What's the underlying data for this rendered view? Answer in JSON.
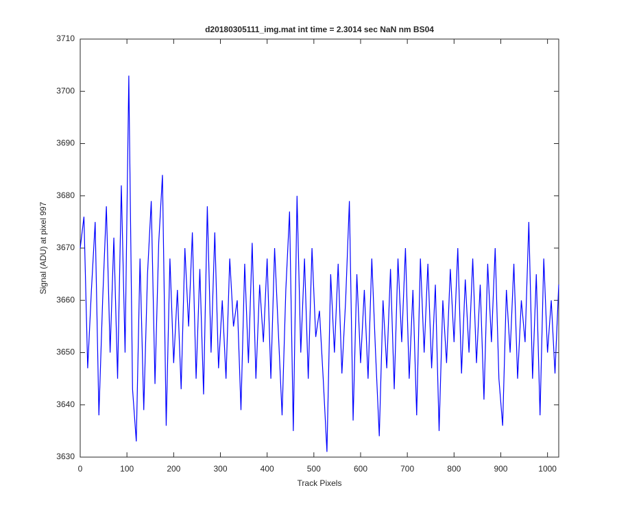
{
  "chart_data": {
    "type": "line",
    "title": "d20180305111_img.mat int time = 2.3014 sec  NaN nm BS04",
    "xlabel": "Track Pixels",
    "ylabel": "Signal (ADU) at pixel 997",
    "x": [
      0,
      8,
      16,
      24,
      32,
      40,
      48,
      56,
      64,
      72,
      80,
      88,
      96,
      104,
      112,
      120,
      128,
      136,
      144,
      152,
      160,
      168,
      176,
      184,
      192,
      200,
      208,
      216,
      224,
      232,
      240,
      248,
      256,
      264,
      272,
      280,
      288,
      296,
      304,
      312,
      320,
      328,
      336,
      344,
      352,
      360,
      368,
      376,
      384,
      392,
      400,
      408,
      416,
      424,
      432,
      440,
      448,
      456,
      464,
      472,
      480,
      488,
      496,
      504,
      512,
      520,
      528,
      536,
      544,
      552,
      560,
      568,
      576,
      584,
      592,
      600,
      608,
      616,
      624,
      632,
      640,
      648,
      656,
      664,
      672,
      680,
      688,
      696,
      704,
      712,
      720,
      728,
      736,
      744,
      752,
      760,
      768,
      776,
      784,
      792,
      800,
      808,
      816,
      824,
      832,
      840,
      848,
      856,
      864,
      872,
      880,
      888,
      896,
      904,
      912,
      920,
      928,
      936,
      944,
      952,
      960,
      968,
      976,
      984,
      992,
      1000,
      1008,
      1016,
      1024
    ],
    "series": [
      {
        "name": "signal",
        "color": "#0000ff",
        "values": [
          3670,
          3676,
          3647,
          3662,
          3675,
          3638,
          3660,
          3678,
          3650,
          3672,
          3645,
          3682,
          3650,
          3703,
          3643,
          3633,
          3668,
          3639,
          3665,
          3679,
          3644,
          3671,
          3684,
          3636,
          3668,
          3648,
          3662,
          3643,
          3670,
          3655,
          3673,
          3645,
          3666,
          3642,
          3678,
          3650,
          3673,
          3647,
          3660,
          3645,
          3668,
          3655,
          3660,
          3639,
          3667,
          3648,
          3671,
          3645,
          3663,
          3652,
          3668,
          3645,
          3670,
          3654,
          3638,
          3662,
          3677,
          3635,
          3680,
          3650,
          3668,
          3645,
          3670,
          3653,
          3658,
          3645,
          3631,
          3665,
          3650,
          3667,
          3646,
          3660,
          3679,
          3637,
          3665,
          3648,
          3662,
          3645,
          3668,
          3650,
          3634,
          3660,
          3647,
          3666,
          3643,
          3668,
          3652,
          3670,
          3645,
          3662,
          3638,
          3668,
          3650,
          3667,
          3647,
          3663,
          3635,
          3660,
          3648,
          3666,
          3652,
          3670,
          3646,
          3664,
          3650,
          3668,
          3648,
          3663,
          3641,
          3667,
          3652,
          3670,
          3645,
          3636,
          3662,
          3650,
          3667,
          3645,
          3660,
          3652,
          3675,
          3645,
          3665,
          3638,
          3668,
          3650,
          3660,
          3646,
          3663
        ]
      }
    ],
    "xlim": [
      0,
      1024
    ],
    "ylim": [
      3630,
      3710
    ],
    "xticks": [
      0,
      100,
      200,
      300,
      400,
      500,
      600,
      700,
      800,
      900,
      1000
    ],
    "yticks": [
      3630,
      3640,
      3650,
      3660,
      3670,
      3680,
      3690,
      3700,
      3710
    ]
  }
}
